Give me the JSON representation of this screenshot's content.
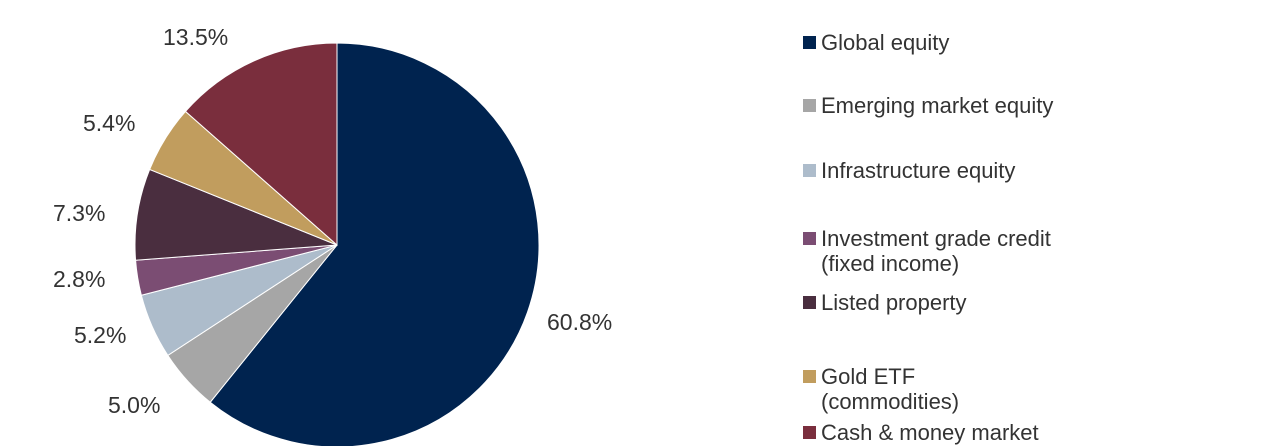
{
  "chart_data": {
    "type": "pie",
    "title": "",
    "start_angle_deg": 0,
    "direction": "clockwise",
    "slices": [
      {
        "label": "Global equity",
        "legend_lines": [
          "Global equity"
        ],
        "value": 60.8,
        "value_label": "60.8%",
        "color": "#00234F"
      },
      {
        "label": "Emerging market equity",
        "legend_lines": [
          "Emerging market equity"
        ],
        "value": 5.0,
        "value_label": "5.0%",
        "color": "#A6A6A6"
      },
      {
        "label": "Infrastructure equity",
        "legend_lines": [
          "Infrastructure equity"
        ],
        "value": 5.2,
        "value_label": "5.2%",
        "color": "#ADBCCB"
      },
      {
        "label": "Investment grade credit (fixed income)",
        "legend_lines": [
          "Investment grade credit",
          "(fixed income)"
        ],
        "value": 2.8,
        "value_label": "2.8%",
        "color": "#7B4D73"
      },
      {
        "label": "Listed property",
        "legend_lines": [
          "Listed property"
        ],
        "value": 7.3,
        "value_label": "7.3%",
        "color": "#4A2E3F"
      },
      {
        "label": "Gold ETF (commodities)",
        "legend_lines": [
          "Gold ETF",
          "(commodities)"
        ],
        "value": 5.4,
        "value_label": "5.4%",
        "color": "#C19D5E"
      },
      {
        "label": "Cash & money market",
        "legend_lines": [
          "Cash & money market"
        ],
        "value": 13.5,
        "value_label": "13.5%",
        "color": "#7A2E3D"
      }
    ],
    "legend_position": "right"
  }
}
